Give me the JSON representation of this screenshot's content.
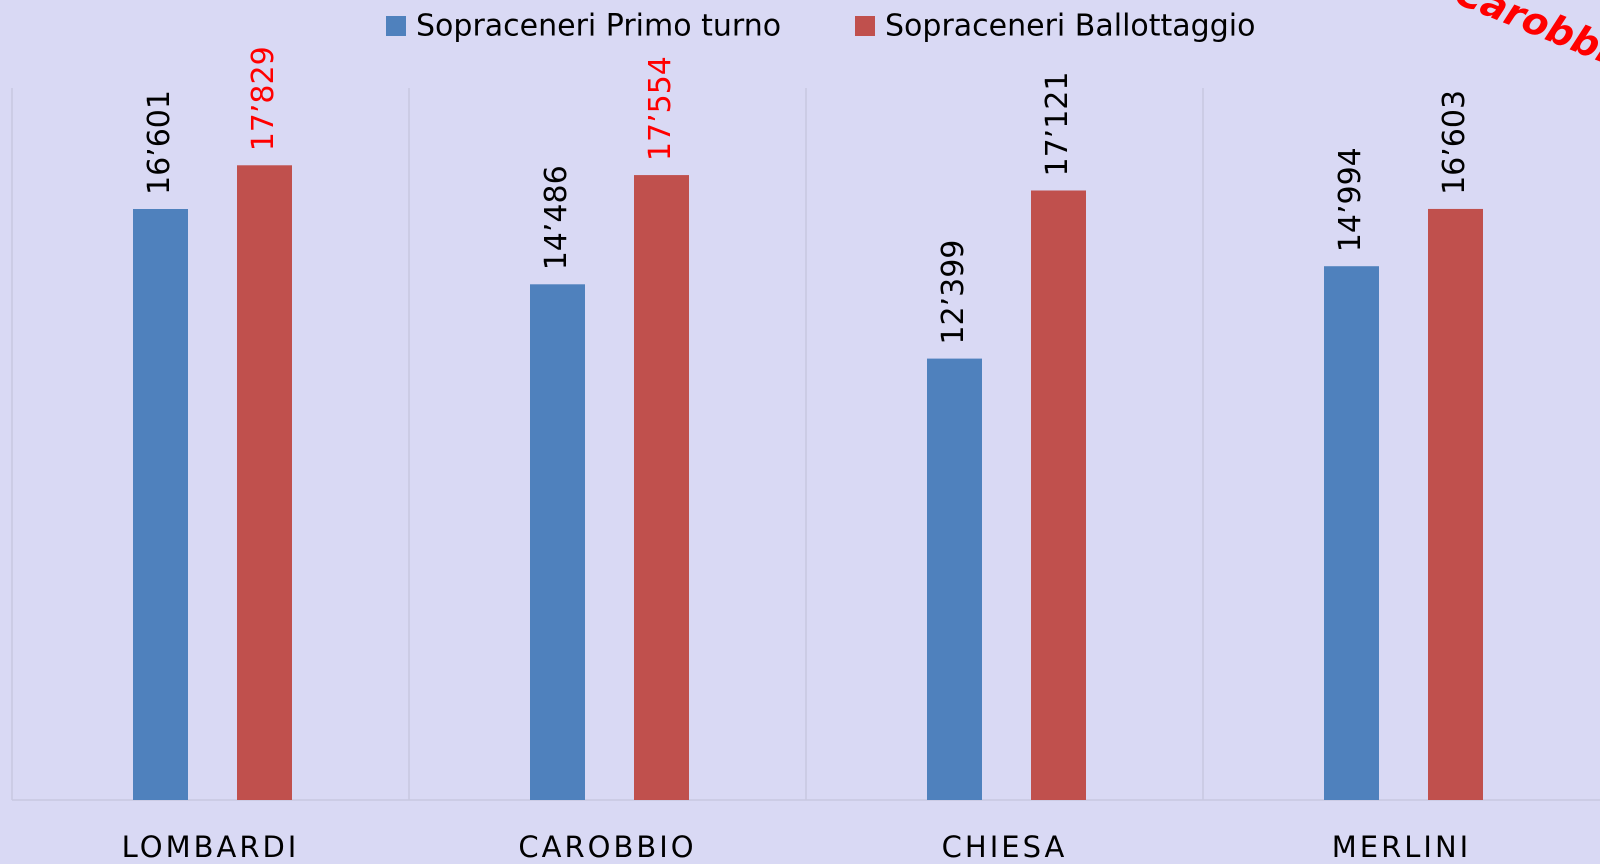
{
  "chart_data": {
    "type": "bar",
    "categories": [
      "LOMBARDI",
      "CAROBBIO",
      "CHIESA",
      "MERLINI"
    ],
    "series": [
      {
        "name": "Sopraceneri Primo turno",
        "color": "#4f81bd",
        "values": [
          16601,
          14486,
          12399,
          14994
        ],
        "value_labels": [
          "16’601",
          "14’486",
          "12’399",
          "14’994"
        ],
        "value_label_colors": [
          "#000000",
          "#000000",
          "#000000",
          "#000000"
        ]
      },
      {
        "name": "Sopraceneri Ballottaggio",
        "color": "#c0504d",
        "values": [
          17829,
          17554,
          17121,
          16603
        ],
        "value_labels": [
          "17’829",
          "17’554",
          "17’121",
          "16’603"
        ],
        "value_label_colors": [
          "#ff0000",
          "#ff0000",
          "#000000",
          "#000000"
        ]
      }
    ],
    "annotation": "Carobbio",
    "ylim": [
      0,
      20000
    ]
  }
}
